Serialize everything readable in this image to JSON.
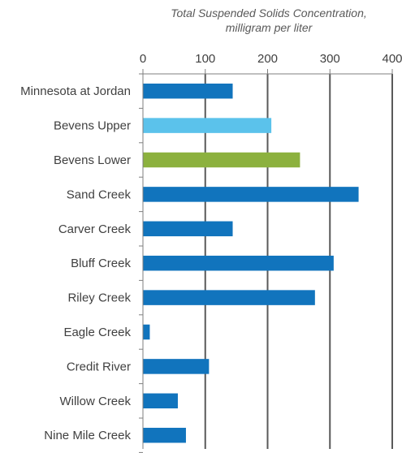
{
  "chart_data": {
    "type": "bar",
    "orientation": "horizontal",
    "title_lines": [
      "Total Suspended Solids Concentration,",
      "milligram per liter"
    ],
    "xlim": [
      0,
      400
    ],
    "x_ticks": [
      "0",
      "100",
      "200",
      "300",
      "400"
    ],
    "x_tick_values": [
      0,
      100,
      200,
      300,
      400
    ],
    "axis_position": "top",
    "grid": "vertical",
    "categories": [
      "Minnesota at Jordan",
      "Bevens Upper",
      "Bevens Lower",
      "Sand Creek",
      "Carver Creek",
      "Bluff Creek",
      "Riley Creek",
      "Eagle Creek",
      "Credit River",
      "Willow Creek",
      "Nine Mile Creek"
    ],
    "values": [
      144,
      206,
      252,
      346,
      144,
      306,
      276,
      11,
      106,
      56,
      69
    ],
    "bar_colors": [
      "#1174bd",
      "#5bc2eb",
      "#8cb13e",
      "#1174bd",
      "#1174bd",
      "#1174bd",
      "#1174bd",
      "#1174bd",
      "#1174bd",
      "#1174bd",
      "#1174bd"
    ],
    "colors": {
      "gridline": "#595959",
      "axis": "#7f7f7f",
      "text": "#404040"
    }
  }
}
